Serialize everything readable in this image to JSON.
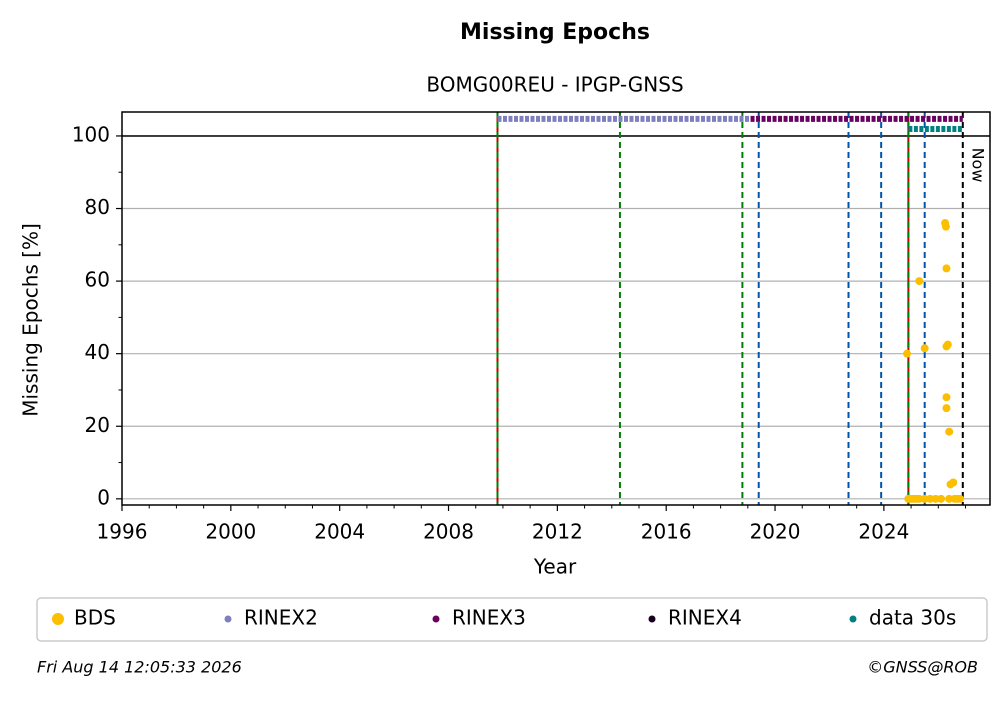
{
  "chart_data": {
    "type": "scatter",
    "title": "Missing Epochs",
    "subtitle": "BOMG00REU - IPGP-GNSS",
    "x_label": "Year",
    "y_label": "Missing Epochs [%]",
    "xlim": [
      1996,
      2027.9
    ],
    "ylim": [
      -1.7,
      106.6
    ],
    "xticks": [
      1996,
      2000,
      2004,
      2008,
      2012,
      2016,
      2020,
      2024
    ],
    "xminorticks": [
      1997,
      1998,
      1999,
      2001,
      2002,
      2003,
      2005,
      2006,
      2007,
      2009,
      2010,
      2011,
      2013,
      2014,
      2015,
      2017,
      2018,
      2019,
      2021,
      2022,
      2023,
      2025,
      2026,
      2027
    ],
    "yticks": [
      0,
      20,
      40,
      60,
      80,
      100
    ],
    "yminorticks": [
      10,
      30,
      50,
      70,
      90
    ],
    "grid": true,
    "hline": 100,
    "vlines": [
      {
        "x": 2009.8,
        "color": "#cc0000",
        "dashed": false
      },
      {
        "x": 2009.8,
        "color": "#008000",
        "dashed": true
      },
      {
        "x": 2014.3,
        "color": "#008000",
        "dashed": true
      },
      {
        "x": 2018.8,
        "color": "#008000",
        "dashed": true
      },
      {
        "x": 2019.4,
        "color": "#0055aa",
        "dashed": true
      },
      {
        "x": 2022.7,
        "color": "#0055aa",
        "dashed": true
      },
      {
        "x": 2023.9,
        "color": "#0055aa",
        "dashed": true
      },
      {
        "x": 2024.9,
        "color": "#cc0000",
        "dashed": false
      },
      {
        "x": 2024.9,
        "color": "#008000",
        "dashed": true
      },
      {
        "x": 2025.5,
        "color": "#0055aa",
        "dashed": true
      },
      {
        "x": 2026.9,
        "color": "#000000",
        "dashed": true
      }
    ],
    "now_label": "Now",
    "series": [
      {
        "name": "BDS",
        "color": "#fbbf00",
        "marker": "dot",
        "x": [
          2024.85,
          2024.9,
          2025.0,
          2025.1,
          2025.2,
          2025.3,
          2025.3,
          2025.5,
          2025.5,
          2025.7,
          2025.9,
          2026.1,
          2026.25,
          2026.28,
          2026.3,
          2026.3,
          2026.35,
          2026.3,
          2026.3,
          2026.4,
          2026.45,
          2026.55,
          2026.4,
          2026.6,
          2026.7,
          2026.8
        ],
        "values": [
          40,
          0,
          0,
          0,
          0,
          60,
          0,
          41.5,
          0,
          0,
          0,
          0,
          76,
          75,
          63.5,
          42,
          42.5,
          28,
          25,
          18.5,
          4,
          4.5,
          0,
          0,
          0,
          0
        ]
      },
      {
        "name": "RINEX2",
        "color": "#7f7fbf",
        "marker": "line",
        "x": [
          2009.8,
          2019.1
        ],
        "values": [
          104.7,
          104.7
        ]
      },
      {
        "name": "RINEX3",
        "color": "#6a0060",
        "marker": "line",
        "x": [
          2019.1,
          2026.9
        ],
        "values": [
          104.7,
          104.7
        ]
      },
      {
        "name": "RINEX4",
        "color": "#1a0020",
        "marker": "line",
        "x": [],
        "values": []
      },
      {
        "name": "data 30s",
        "color": "#008080",
        "marker": "line",
        "x": [
          2024.9,
          2026.9
        ],
        "values": [
          101.9,
          101.9
        ]
      }
    ]
  },
  "footer": {
    "date": "Fri Aug 14 12:05:33 2026",
    "credit": "©GNSS@ROB"
  }
}
